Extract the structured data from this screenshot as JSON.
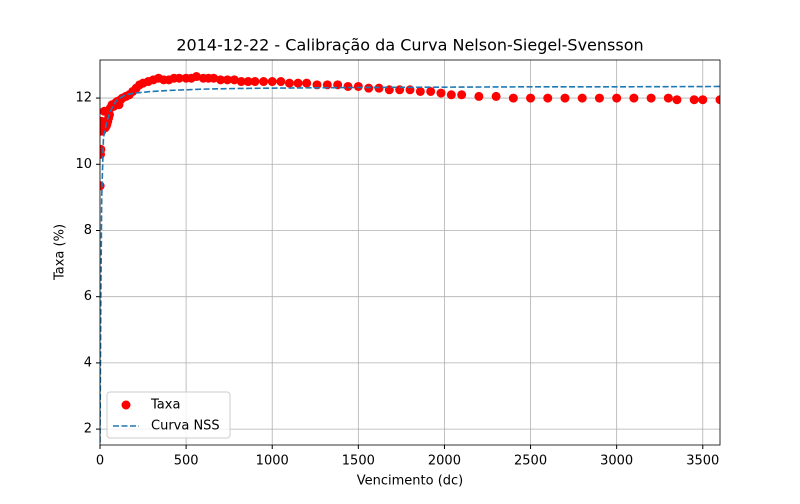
{
  "chart_data": {
    "type": "scatter",
    "title": "2014-12-22 - Calibração da Curva Nelson-Siegel-Svensson",
    "x_label": "Vencimento (dc)",
    "y_label": "Taxa (%)",
    "xlim": [
      0,
      3600
    ],
    "ylim": [
      1.52,
      13.15
    ],
    "xticks": [
      0,
      500,
      1000,
      1500,
      2000,
      2500,
      3000,
      3500
    ],
    "yticks": [
      2,
      4,
      6,
      8,
      10,
      12
    ],
    "grid": true,
    "legend": "lower left",
    "series": [
      {
        "name": "Taxa",
        "type": "scatter",
        "color": "#ff0000",
        "x": [
          1,
          3,
          5,
          8,
          10,
          15,
          20,
          25,
          30,
          35,
          40,
          45,
          50,
          55,
          60,
          70,
          80,
          90,
          100,
          110,
          120,
          130,
          150,
          170,
          190,
          210,
          230,
          250,
          280,
          310,
          340,
          370,
          400,
          430,
          460,
          500,
          530,
          560,
          600,
          630,
          660,
          700,
          740,
          780,
          820,
          860,
          900,
          950,
          1000,
          1050,
          1100,
          1150,
          1200,
          1260,
          1320,
          1380,
          1440,
          1500,
          1560,
          1620,
          1680,
          1740,
          1800,
          1860,
          1920,
          1980,
          2040,
          2100,
          2200,
          2300,
          2400,
          2500,
          2600,
          2700,
          2800,
          2900,
          3000,
          3100,
          3200,
          3300,
          3350,
          3450,
          3500,
          3600
        ],
        "values": [
          9.35,
          10.3,
          10.45,
          11.3,
          11.0,
          11.2,
          11.1,
          11.6,
          11.1,
          11.15,
          11.2,
          11.3,
          11.4,
          11.5,
          11.7,
          11.8,
          11.75,
          11.85,
          11.9,
          11.8,
          11.95,
          12.0,
          12.05,
          12.1,
          12.2,
          12.3,
          12.4,
          12.45,
          12.5,
          12.55,
          12.6,
          12.55,
          12.55,
          12.6,
          12.6,
          12.6,
          12.6,
          12.65,
          12.6,
          12.6,
          12.6,
          12.55,
          12.55,
          12.55,
          12.5,
          12.5,
          12.5,
          12.5,
          12.5,
          12.5,
          12.45,
          12.45,
          12.45,
          12.4,
          12.4,
          12.4,
          12.35,
          12.35,
          12.3,
          12.3,
          12.25,
          12.25,
          12.25,
          12.2,
          12.2,
          12.15,
          12.1,
          12.1,
          12.05,
          12.05,
          12.0,
          12.0,
          12.0,
          12.0,
          12.0,
          12.0,
          12.0,
          12.0,
          12.0,
          12.0,
          11.95,
          11.95,
          11.95,
          11.95
        ]
      },
      {
        "name": "Curva NSS",
        "type": "line",
        "color": "#1f77b4",
        "x": [
          0,
          5,
          10,
          20,
          40,
          60,
          80,
          100,
          150,
          200,
          300,
          400,
          600,
          800,
          1000,
          1500,
          2000,
          2500,
          3000,
          3600
        ],
        "values": [
          1.6,
          6,
          9,
          10.8,
          11.3,
          11.6,
          11.8,
          11.95,
          12.1,
          12.15,
          12.2,
          12.23,
          12.27,
          12.29,
          12.3,
          12.32,
          12.33,
          12.34,
          12.34,
          12.35
        ]
      }
    ]
  }
}
